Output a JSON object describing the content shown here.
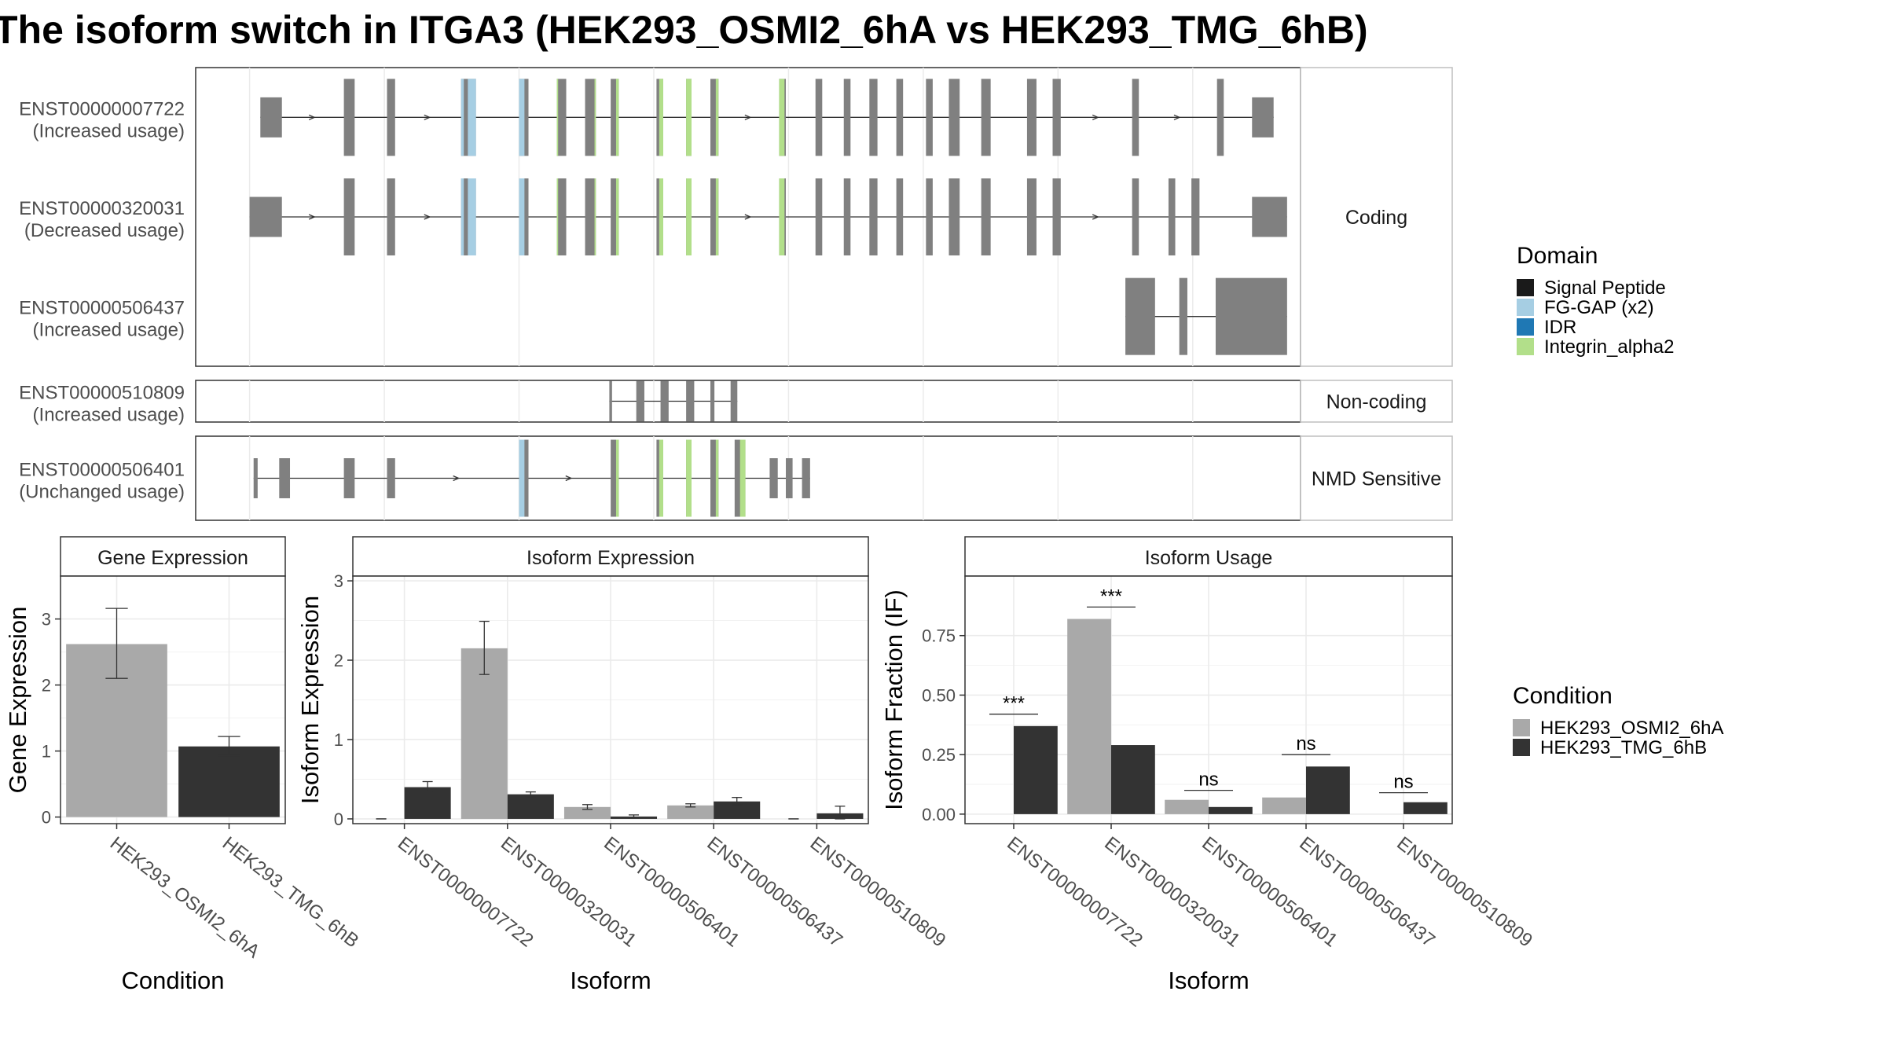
{
  "title": "The isoform switch in ITGA3 (HEK293_OSMI2_6hA vs HEK293_TMG_6hB)",
  "colors": {
    "exon": "#808080",
    "signal_peptide": "#1a1a1a",
    "fg_gap": "#a6cee3",
    "idr": "#1f78b4",
    "integrin_alpha2": "#b2df8a",
    "cond_a": "#a9a9a9",
    "cond_b": "#333333",
    "grid": "#ebebeb",
    "panel_border": "#333333",
    "strip_border": "#bfbfbf"
  },
  "domain_legend": {
    "title": "Domain",
    "items": [
      {
        "label": "Signal Peptide",
        "color": "#1a1a1a"
      },
      {
        "label": "FG-GAP (x2)",
        "color": "#a6cee3"
      },
      {
        "label": "IDR",
        "color": "#1f78b4"
      },
      {
        "label": "Integrin_alpha2",
        "color": "#b2df8a"
      }
    ]
  },
  "condition_legend": {
    "title": "Condition",
    "items": [
      {
        "label": "HEK293_OSMI2_6hA",
        "color": "#a9a9a9"
      },
      {
        "label": "HEK293_TMG_6hB",
        "color": "#333333"
      }
    ]
  },
  "structure": {
    "groups": [
      {
        "strip": "Coding",
        "transcripts": [
          {
            "id": "ENST00000007722",
            "usage": "(Increased usage)",
            "exons": [
              [
                108,
                124
              ],
              [
                170,
                178
              ],
              [
                202,
                208
              ],
              [
                257,
                268
              ],
              [
                300,
                307
              ],
              [
                328,
                335
              ],
              [
                349,
                357
              ],
              [
                368,
                374
              ],
              [
                402,
                407
              ],
              [
                424,
                428
              ],
              [
                442,
                448
              ],
              [
                493,
                498
              ],
              [
                520,
                525
              ],
              [
                541,
                546
              ],
              [
                560,
                566
              ],
              [
                580,
                585
              ],
              [
                602,
                607
              ],
              [
                619,
                627
              ],
              [
                643,
                650
              ],
              [
                677,
                684
              ],
              [
                696,
                702
              ],
              [
                755,
                760
              ],
              [
                818,
                823
              ],
              [
                844,
                860
              ]
            ],
            "cds": [
              [
                120,
                124
              ],
              [
                170,
                178
              ],
              [
                202,
                208
              ],
              [
                257,
                268
              ],
              [
                300,
                307
              ],
              [
                328,
                335
              ],
              [
                349,
                357
              ],
              [
                368,
                374
              ],
              [
                402,
                407
              ],
              [
                424,
                428
              ],
              [
                442,
                448
              ],
              [
                493,
                498
              ],
              [
                520,
                525
              ],
              [
                541,
                546
              ],
              [
                560,
                566
              ],
              [
                580,
                585
              ],
              [
                602,
                607
              ],
              [
                619,
                627
              ],
              [
                643,
                650
              ],
              [
                677,
                684
              ],
              [
                696,
                702
              ],
              [
                755,
                760
              ],
              [
                818,
                823
              ]
            ]
          },
          {
            "id": "ENST00000320031",
            "usage": "(Decreased usage)",
            "exons": [
              [
                100,
                124
              ],
              [
                170,
                178
              ],
              [
                202,
                208
              ],
              [
                257,
                268
              ],
              [
                300,
                307
              ],
              [
                328,
                335
              ],
              [
                349,
                357
              ],
              [
                368,
                374
              ],
              [
                402,
                407
              ],
              [
                424,
                428
              ],
              [
                442,
                448
              ],
              [
                493,
                498
              ],
              [
                520,
                525
              ],
              [
                541,
                546
              ],
              [
                560,
                566
              ],
              [
                580,
                585
              ],
              [
                602,
                607
              ],
              [
                619,
                627
              ],
              [
                643,
                650
              ],
              [
                677,
                684
              ],
              [
                696,
                702
              ],
              [
                755,
                760
              ],
              [
                782,
                787
              ],
              [
                799,
                805
              ],
              [
                844,
                870
              ]
            ],
            "cds": [
              [
                114,
                124
              ],
              [
                170,
                178
              ],
              [
                202,
                208
              ],
              [
                257,
                268
              ],
              [
                300,
                307
              ],
              [
                328,
                335
              ],
              [
                349,
                357
              ],
              [
                368,
                374
              ],
              [
                402,
                407
              ],
              [
                424,
                428
              ],
              [
                442,
                448
              ],
              [
                493,
                498
              ],
              [
                520,
                525
              ],
              [
                541,
                546
              ],
              [
                560,
                566
              ],
              [
                580,
                585
              ],
              [
                602,
                607
              ],
              [
                619,
                627
              ],
              [
                643,
                650
              ],
              [
                677,
                684
              ],
              [
                696,
                702
              ],
              [
                755,
                760
              ],
              [
                782,
                787
              ],
              [
                799,
                805
              ],
              [
                844,
                852
              ]
            ]
          },
          {
            "id": "ENST00000506437",
            "usage": "(Increased usage)",
            "exons": [
              [
                750,
                772
              ],
              [
                790,
                796
              ],
              [
                817,
                870
              ]
            ],
            "cds": [
              [
                750,
                772
              ],
              [
                790,
                796
              ],
              [
                817,
                870
              ]
            ]
          }
        ]
      },
      {
        "strip": "Non-coding",
        "transcripts": [
          {
            "id": "ENST00000510809",
            "usage": "(Increased usage)",
            "exons": [
              [
                367,
                369
              ],
              [
                387,
                393
              ],
              [
                405,
                411
              ],
              [
                424,
                430
              ],
              [
                442,
                445
              ],
              [
                457,
                462
              ]
            ],
            "cds": []
          }
        ]
      },
      {
        "strip": "NMD Sensitive",
        "transcripts": [
          {
            "id": "ENST00000506401",
            "usage": "(Unchanged usage)",
            "exons": [
              [
                103,
                106
              ],
              [
                122,
                130
              ],
              [
                170,
                178
              ],
              [
                202,
                208
              ],
              [
                300,
                307
              ],
              [
                368,
                374
              ],
              [
                402,
                407
              ],
              [
                424,
                428
              ],
              [
                442,
                448
              ],
              [
                460,
                468
              ],
              [
                486,
                492
              ],
              [
                498,
                503
              ],
              [
                510,
                516
              ]
            ],
            "cds": [
              [
                300,
                307
              ],
              [
                368,
                374
              ],
              [
                402,
                407
              ],
              [
                424,
                428
              ],
              [
                442,
                448
              ],
              [
                460,
                468
              ]
            ]
          }
        ]
      }
    ]
  },
  "chart_data": [
    {
      "type": "bar",
      "title": "Gene Expression",
      "xlabel": "Condition",
      "ylabel": "Gene Expression",
      "categories": [
        "HEK293_OSMI2_6hA",
        "HEK293_TMG_6hB"
      ],
      "values": [
        2.62,
        1.07
      ],
      "errors": [
        [
          2.1,
          3.16
        ],
        [
          0.93,
          1.22
        ]
      ],
      "yticks": [
        0,
        1,
        2,
        3
      ],
      "ylim": [
        -0.1,
        3.65
      ]
    },
    {
      "type": "bar",
      "title": "Isoform Expression",
      "xlabel": "Isoform",
      "ylabel": "Isoform Expression",
      "categories": [
        "ENST00000007722",
        "ENST00000320031",
        "ENST00000506401",
        "ENST00000506437",
        "ENST00000510809"
      ],
      "series": [
        {
          "name": "HEK293_OSMI2_6hA",
          "values": [
            0.0,
            2.15,
            0.15,
            0.17,
            0.0
          ],
          "errors": [
            [
              0.0,
              0.0
            ],
            [
              1.82,
              2.49
            ],
            [
              0.12,
              0.18
            ],
            [
              0.15,
              0.19
            ],
            [
              0.0,
              0.0
            ]
          ]
        },
        {
          "name": "HEK293_TMG_6hB",
          "values": [
            0.4,
            0.31,
            0.03,
            0.22,
            0.07
          ],
          "errors": [
            [
              0.34,
              0.47
            ],
            [
              0.28,
              0.34
            ],
            [
              0.01,
              0.05
            ],
            [
              0.18,
              0.27
            ],
            [
              0.0,
              0.16
            ]
          ]
        }
      ],
      "yticks": [
        0,
        1,
        2,
        3
      ],
      "ylim": [
        -0.06,
        3.06
      ]
    },
    {
      "type": "bar",
      "title": "Isoform Usage",
      "xlabel": "Isoform",
      "ylabel": "Isoform Fraction (IF)",
      "categories": [
        "ENST00000007722",
        "ENST00000320031",
        "ENST00000506401",
        "ENST00000506437",
        "ENST00000510809"
      ],
      "series": [
        {
          "name": "HEK293_OSMI2_6hA",
          "values": [
            0.0,
            0.82,
            0.06,
            0.07,
            0.0
          ]
        },
        {
          "name": "HEK293_TMG_6hB",
          "values": [
            0.37,
            0.29,
            0.03,
            0.2,
            0.05
          ]
        }
      ],
      "significance": [
        {
          "label": "***",
          "y": 0.42
        },
        {
          "label": "***",
          "y": 0.87
        },
        {
          "label": "ns",
          "y": 0.1
        },
        {
          "label": "ns",
          "y": 0.25
        },
        {
          "label": "ns",
          "y": 0.09
        }
      ],
      "yticks": [
        0,
        0.25,
        0.5,
        0.75
      ],
      "yticklabels": [
        "0.00",
        "0.25",
        "0.50",
        "0.75"
      ],
      "ylim": [
        -0.04,
        1.0
      ]
    }
  ]
}
